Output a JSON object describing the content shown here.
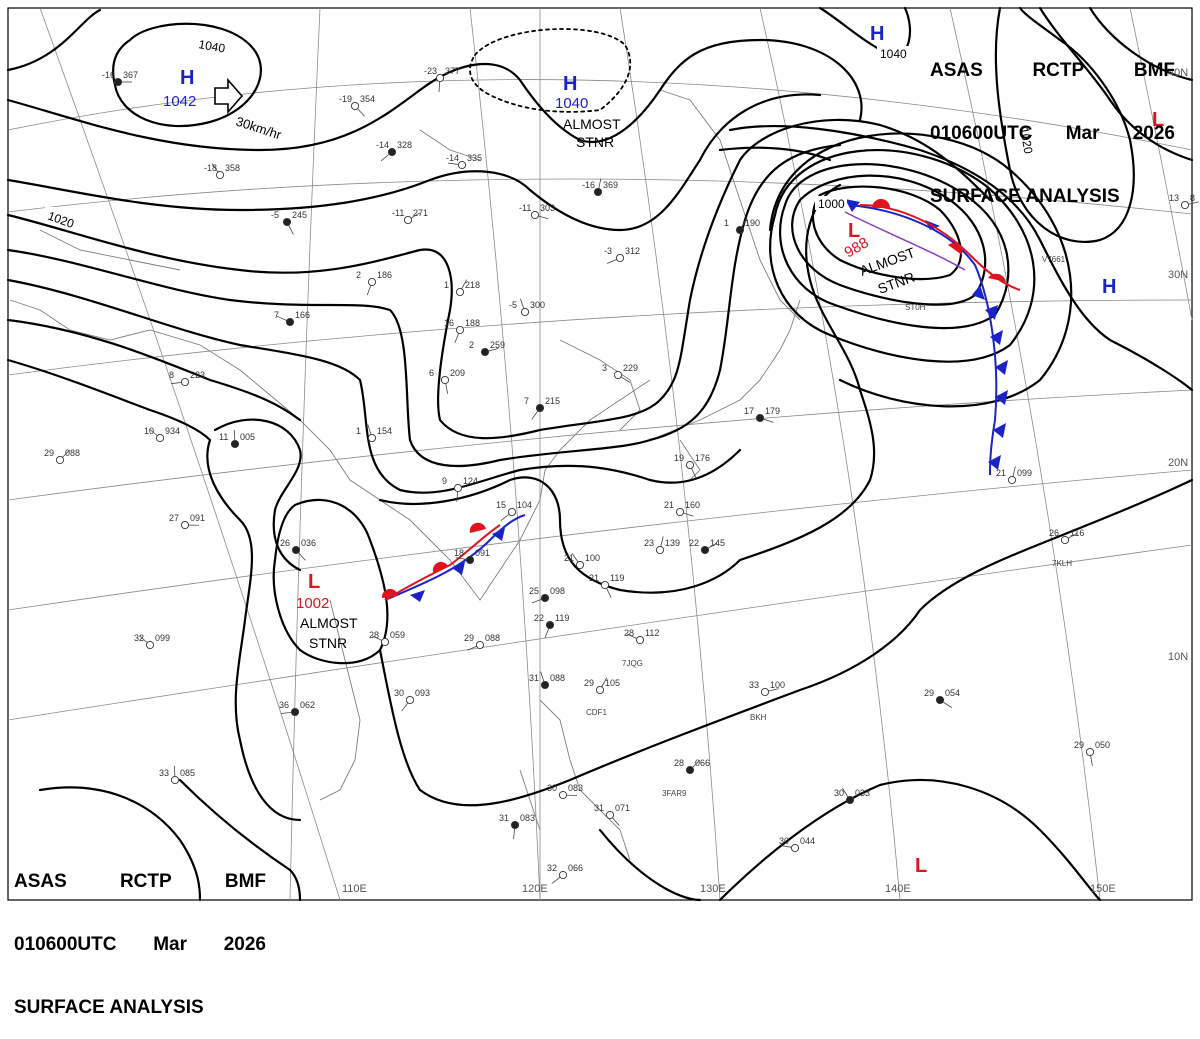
{
  "header": {
    "office": "ASAS",
    "station": "RCTP",
    "code": "BMF",
    "time": "010600UTC",
    "month": "Mar",
    "year": "2026",
    "product": "SURFACE ANALYSIS"
  },
  "pressure_centers": [
    {
      "type": "H",
      "value": "1042",
      "color": "#1a23c8"
    },
    {
      "type": "H",
      "value": "1040",
      "color": "#1a23c8",
      "note": "ALMOST STNR"
    },
    {
      "type": "L",
      "value": "988",
      "color": "#e0141e",
      "note": "ALMOST STNR"
    },
    {
      "type": "L",
      "value": "1002",
      "color": "#e0141e",
      "note": "ALMOST STNR"
    },
    {
      "type": "H",
      "value": "",
      "color": "#1a23c8"
    },
    {
      "type": "L",
      "value": "",
      "color": "#e0141e"
    },
    {
      "type": "L",
      "value": "",
      "color": "#e0141e"
    }
  ],
  "isobar_labels": [
    "1040",
    "1020",
    "1020",
    "1000"
  ],
  "motion_label": "30km/hr",
  "lon_labels": [
    "110E",
    "120E",
    "130E",
    "140E",
    "150E"
  ],
  "lat_labels": [
    "40N",
    "30N",
    "20N",
    "10N"
  ],
  "ship_ids": [
    "V7661",
    "ST0H",
    "7KLH",
    "7JQG",
    "3FAR9",
    "CDF1",
    "BKH"
  ],
  "stations": [
    {
      "t": "-16",
      "p": "367"
    },
    {
      "t": "-19",
      "p": "354"
    },
    {
      "t": "-23",
      "p": "377"
    },
    {
      "t": "-14",
      "p": "328"
    },
    {
      "t": "-14",
      "p": "335"
    },
    {
      "t": "-18",
      "p": "358"
    },
    {
      "t": "-16",
      "p": "369"
    },
    {
      "t": "-11",
      "p": "271"
    },
    {
      "t": "-11",
      "p": "303"
    },
    {
      "t": "-5",
      "p": "245"
    },
    {
      "t": "2",
      "p": "186"
    },
    {
      "t": "-3",
      "p": "312"
    },
    {
      "t": "7",
      "p": "166"
    },
    {
      "t": "-5",
      "p": "300"
    },
    {
      "t": "1",
      "p": "218"
    },
    {
      "t": "2",
      "p": "259"
    },
    {
      "t": "3",
      "p": "229"
    },
    {
      "t": "6",
      "p": "209"
    },
    {
      "t": "7",
      "p": "215"
    },
    {
      "t": "8",
      "p": "223"
    },
    {
      "t": "10",
      "p": "934"
    },
    {
      "t": "11",
      "p": "005"
    },
    {
      "t": "29",
      "p": "088"
    },
    {
      "t": "27",
      "p": "091"
    },
    {
      "t": "26",
      "p": "036"
    },
    {
      "t": "9",
      "p": "124"
    },
    {
      "t": "15",
      "p": "104"
    },
    {
      "t": "18",
      "p": "091"
    },
    {
      "t": "21",
      "p": "100"
    },
    {
      "t": "23",
      "p": "139"
    },
    {
      "t": "22",
      "p": "145"
    },
    {
      "t": "21",
      "p": "160"
    },
    {
      "t": "21",
      "p": "119"
    },
    {
      "t": "22",
      "p": "119"
    },
    {
      "t": "29",
      "p": "088"
    },
    {
      "t": "28",
      "p": "112"
    },
    {
      "t": "31",
      "p": "088"
    },
    {
      "t": "29",
      "p": "105"
    },
    {
      "t": "33",
      "p": "100"
    },
    {
      "t": "29",
      "p": "054"
    },
    {
      "t": "29",
      "p": "050"
    },
    {
      "t": "30",
      "p": "093"
    },
    {
      "t": "36",
      "p": "062"
    },
    {
      "t": "32",
      "p": "099"
    },
    {
      "t": "33",
      "p": "085"
    },
    {
      "t": "28",
      "p": "066"
    },
    {
      "t": "30",
      "p": "083"
    },
    {
      "t": "31",
      "p": "071"
    },
    {
      "t": "31",
      "p": "083"
    },
    {
      "t": "32",
      "p": "066"
    },
    {
      "t": "30",
      "p": "044"
    },
    {
      "t": "30",
      "p": "033"
    },
    {
      "t": "21",
      "p": "099"
    },
    {
      "t": "26",
      "p": "116"
    },
    {
      "t": "17",
      "p": "179"
    },
    {
      "t": "19",
      "p": "176"
    },
    {
      "t": "16",
      "p": "188"
    },
    {
      "t": "25",
      "p": "098"
    },
    {
      "t": "28",
      "p": "059"
    },
    {
      "t": "1",
      "p": "154"
    },
    {
      "t": "1",
      "p": "190"
    },
    {
      "t": "13",
      "p": "8"
    }
  ]
}
